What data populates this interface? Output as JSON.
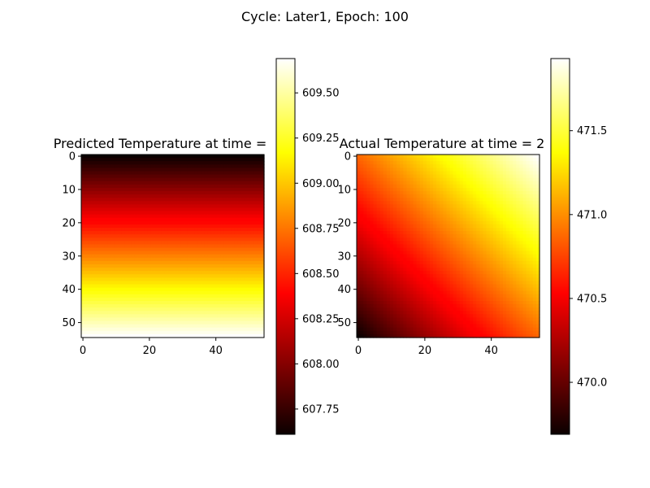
{
  "figure": {
    "suptitle": "Cycle: Later1, Epoch: 100"
  },
  "colormap": "hot",
  "chart_data": [
    {
      "type": "heatmap",
      "title": "Predicted Temperature at time = ",
      "grid_shape": [
        55,
        55
      ],
      "pattern": "vertical-gradient",
      "value_range": [
        607.61,
        609.69
      ],
      "x_ticks": [
        0,
        20,
        40
      ],
      "y_ticks": [
        0,
        10,
        20,
        30,
        40,
        50
      ],
      "colorbar": {
        "ticks": [
          607.75,
          608.0,
          608.25,
          608.5,
          608.75,
          609.0,
          609.25,
          609.5
        ],
        "tick_labels": [
          "607.75",
          "608.00",
          "608.25",
          "608.50",
          "608.75",
          "609.00",
          "609.25",
          "609.50"
        ]
      }
    },
    {
      "type": "heatmap",
      "title": "Actual Temperature at time = 2",
      "grid_shape": [
        55,
        55
      ],
      "pattern": "diagonal-gradient",
      "value_range": [
        469.69,
        471.93
      ],
      "x_ticks": [
        0,
        20,
        40
      ],
      "y_ticks": [
        0,
        10,
        20,
        30,
        40,
        50
      ],
      "colorbar": {
        "ticks": [
          470.0,
          470.5,
          471.0,
          471.5
        ],
        "tick_labels": [
          "470.0",
          "470.5",
          "471.0",
          "471.5"
        ]
      }
    }
  ]
}
